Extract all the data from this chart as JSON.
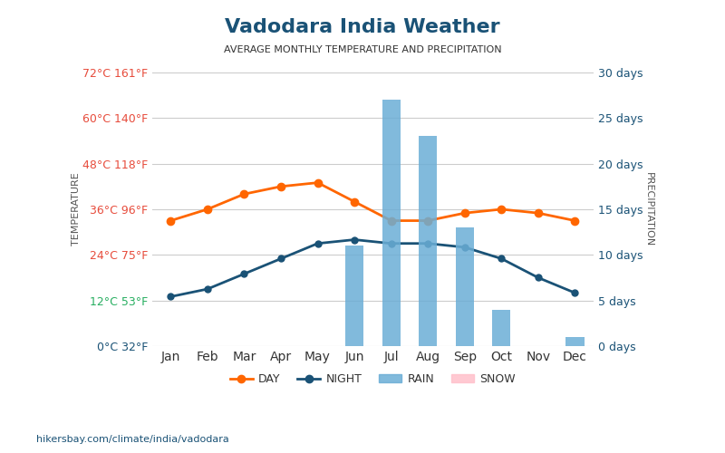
{
  "title": "Vadodara India Weather",
  "subtitle": "AVERAGE MONTHLY TEMPERATURE AND PRECIPITATION",
  "months": [
    "Jan",
    "Feb",
    "Mar",
    "Apr",
    "May",
    "Jun",
    "Jul",
    "Aug",
    "Sep",
    "Oct",
    "Nov",
    "Dec"
  ],
  "day_temp": [
    33,
    36,
    40,
    42,
    43,
    38,
    33,
    33,
    35,
    36,
    35,
    33
  ],
  "night_temp": [
    13,
    15,
    19,
    23,
    27,
    28,
    27,
    27,
    26,
    23,
    18,
    14
  ],
  "rain_days": [
    0,
    0,
    0,
    0,
    0,
    11,
    27,
    23,
    13,
    4,
    0,
    1
  ],
  "snow_days": [
    0,
    0,
    0,
    0,
    0,
    0,
    0,
    0,
    0,
    0,
    0,
    0
  ],
  "y_temp_ticks": [
    0,
    12,
    24,
    36,
    48,
    60,
    72
  ],
  "y_temp_labels": [
    "0°C 32°F",
    "12°C 53°F",
    "24°C 75°F",
    "36°C 96°F",
    "48°C 118°F",
    "60°C 140°F",
    "72°C 161°F"
  ],
  "y_precip_ticks": [
    0,
    5,
    10,
    15,
    20,
    25,
    30
  ],
  "y_precip_labels": [
    "0 days",
    "5 days",
    "10 days",
    "15 days",
    "20 days",
    "25 days",
    "30 days"
  ],
  "temp_min": 0,
  "temp_max": 72,
  "precip_min": 0,
  "precip_max": 30,
  "day_color": "#ff6600",
  "night_color": "#1a5276",
  "rain_color": "#6baed6",
  "snow_color": "#ffc0cb",
  "title_color": "#1a5276",
  "subtitle_color": "#333333",
  "left_label_color_hot": "#e74c3c",
  "left_label_color_green": "#27ae60",
  "left_label_color_blue": "#1a5276",
  "right_label_color": "#1a5276",
  "axis_label_color": "#555555",
  "grid_color": "#cccccc",
  "background_color": "#ffffff",
  "footer_text": "hikersbay.com/climate/india/vadodara"
}
